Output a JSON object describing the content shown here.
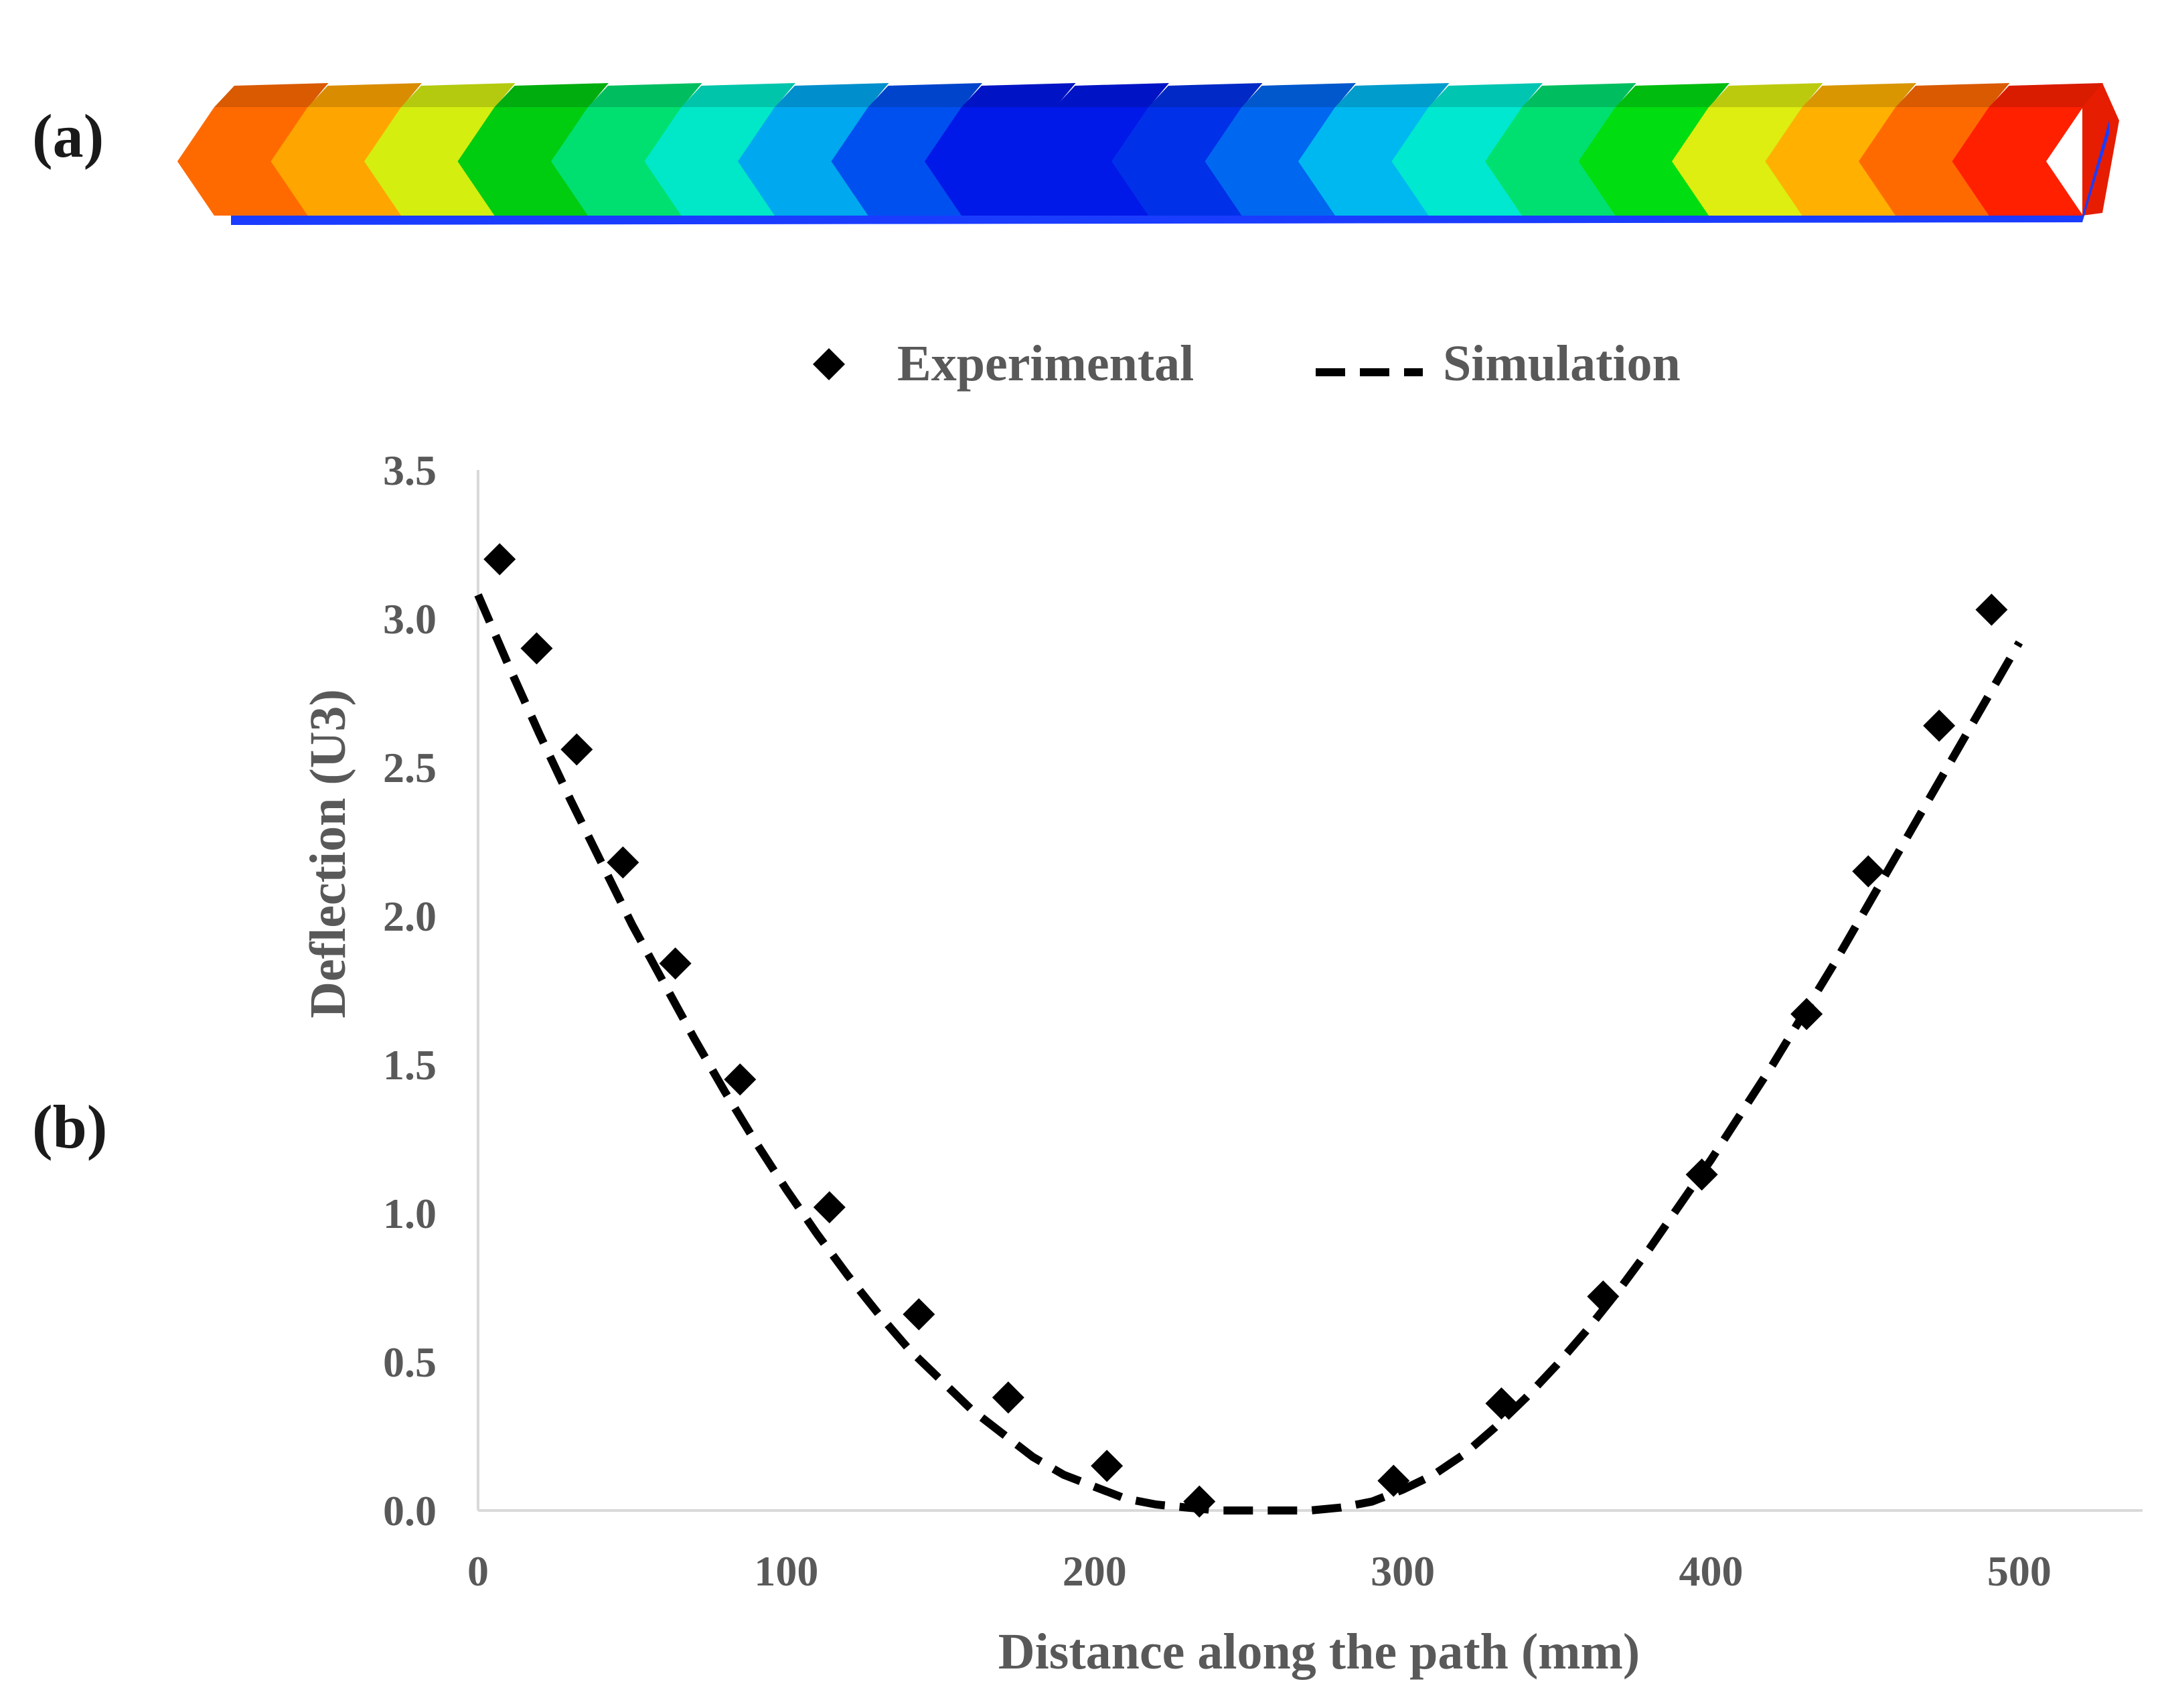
{
  "panels": {
    "a": "(a)",
    "b": "(b)"
  },
  "beam": {
    "colors": [
      "#ff6a00",
      "#ffa500",
      "#d4ee10",
      "#00cc10",
      "#00e070",
      "#00e8c8",
      "#00a8f0",
      "#0050f0",
      "#0018e8",
      "#0018e8",
      "#0030e8",
      "#0068f0",
      "#00b8f0",
      "#00e8d0",
      "#00e070",
      "#00dd10",
      "#ddee10",
      "#ffb000",
      "#ff6a00",
      "#ff2000"
    ]
  },
  "chart_data": {
    "type": "scatter",
    "xlabel": "Distance along the path (mm)",
    "ylabel": "Deflection (U3)",
    "xlim": [
      0,
      540
    ],
    "ylim": [
      0,
      3.5
    ],
    "xticks": [
      "0",
      "100",
      "200",
      "300",
      "400",
      "500"
    ],
    "yticks": [
      "0.0",
      "0.5",
      "1.0",
      "1.5",
      "2.0",
      "2.5",
      "3.0",
      "3.5"
    ],
    "grid": false,
    "legend_position": "top",
    "series": [
      {
        "name": "Experimental",
        "marker": "diamond",
        "color": "#000000",
        "x": [
          7,
          19,
          32,
          47,
          64,
          85,
          114,
          143,
          172,
          204,
          234,
          297,
          332,
          365,
          397,
          431,
          451,
          474,
          491
        ],
        "y": [
          3.2,
          2.9,
          2.56,
          2.18,
          1.84,
          1.45,
          1.02,
          0.66,
          0.38,
          0.15,
          0.03,
          0.1,
          0.36,
          0.72,
          1.13,
          1.67,
          2.15,
          2.64,
          3.03
        ]
      },
      {
        "name": "Simulation",
        "style": "dashed",
        "color": "#000000",
        "x": [
          0,
          10,
          20,
          30,
          40,
          50,
          60,
          70,
          80,
          90,
          100,
          110,
          120,
          130,
          140,
          150,
          160,
          170,
          180,
          190,
          200,
          210,
          220,
          230,
          240,
          250,
          260,
          270,
          280,
          290,
          300,
          310,
          320,
          330,
          340,
          350,
          360,
          370,
          380,
          390,
          400,
          410,
          420,
          430,
          440,
          450,
          460,
          470,
          480,
          490,
          500
        ],
        "y": [
          3.08,
          2.84,
          2.61,
          2.39,
          2.18,
          1.97,
          1.78,
          1.59,
          1.41,
          1.24,
          1.08,
          0.93,
          0.79,
          0.66,
          0.54,
          0.44,
          0.34,
          0.26,
          0.18,
          0.12,
          0.08,
          0.04,
          0.02,
          0.01,
          0.0,
          0.0,
          0.0,
          0.0,
          0.01,
          0.03,
          0.07,
          0.12,
          0.19,
          0.28,
          0.38,
          0.49,
          0.61,
          0.74,
          0.88,
          1.03,
          1.18,
          1.34,
          1.5,
          1.67,
          1.84,
          2.02,
          2.2,
          2.38,
          2.56,
          2.74,
          2.92
        ]
      }
    ]
  }
}
